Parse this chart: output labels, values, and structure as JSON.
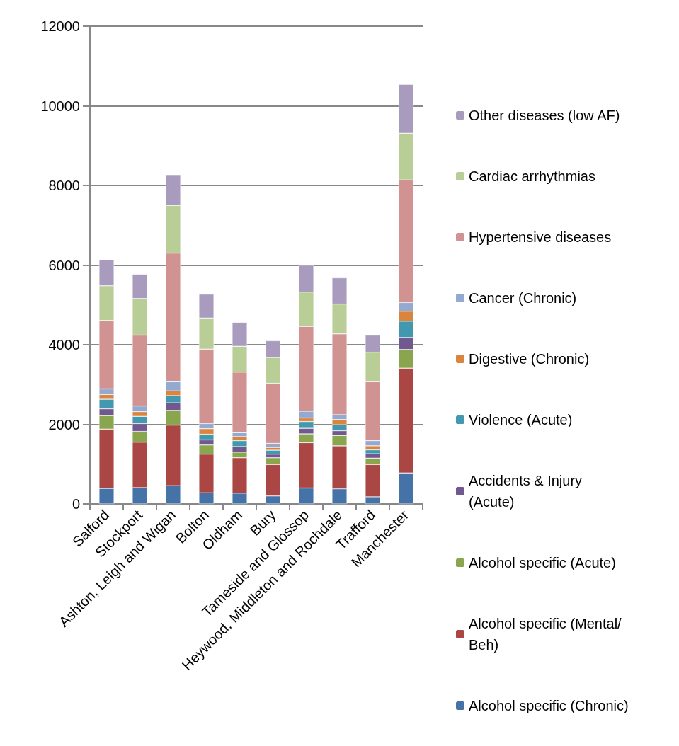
{
  "chart_data": {
    "type": "bar",
    "stacked": true,
    "grid": "y",
    "legend": "right",
    "categories": [
      "Salford",
      "Stockport",
      "Ashton, Leigh and Wigan",
      "Bolton",
      "Oldham",
      "Bury",
      "Tameside and Glossop",
      "Heywood, Middleton and Rochdale",
      "Trafford",
      "Manchester"
    ],
    "ylim": [
      0,
      12000
    ],
    "yticks": [
      0,
      2000,
      4000,
      6000,
      8000,
      10000,
      12000
    ],
    "series": [
      {
        "name": "Alcohol specific (Chronic)",
        "color": "#4572a7",
        "values": [
          390,
          410,
          460,
          280,
          270,
          200,
          400,
          380,
          180,
          780
        ]
      },
      {
        "name": "Alcohol specific (Mental/Beh)",
        "color": "#aa4643",
        "values": [
          1490,
          1140,
          1520,
          970,
          890,
          790,
          1140,
          1080,
          810,
          2630
        ]
      },
      {
        "name": "Alcohol specific (Acute)",
        "color": "#89a54e",
        "values": [
          340,
          270,
          370,
          230,
          140,
          170,
          220,
          260,
          160,
          470
        ]
      },
      {
        "name": "Accidents & Injury (Acute)",
        "color": "#71588f",
        "values": [
          170,
          200,
          190,
          130,
          140,
          90,
          140,
          120,
          110,
          300
        ]
      },
      {
        "name": "Violence (Acute)",
        "color": "#4198af",
        "values": [
          240,
          180,
          180,
          140,
          150,
          100,
          170,
          150,
          100,
          410
        ]
      },
      {
        "name": "Digestive (Chronic)",
        "color": "#db843d",
        "values": [
          120,
          120,
          120,
          140,
          100,
          70,
          90,
          130,
          100,
          250
        ]
      },
      {
        "name": "Cancer (Chronic)",
        "color": "#93a9cf",
        "values": [
          140,
          140,
          230,
          130,
          100,
          100,
          170,
          120,
          130,
          220
        ]
      },
      {
        "name": "Hypertensive diseases",
        "color": "#d19392",
        "values": [
          1720,
          1780,
          3230,
          1870,
          1520,
          1510,
          2130,
          2030,
          1480,
          3080
        ]
      },
      {
        "name": "Cardiac arrhythmias",
        "color": "#b9cd96",
        "values": [
          870,
          920,
          1200,
          780,
          650,
          650,
          860,
          750,
          740,
          1170
        ]
      },
      {
        "name": "Other diseases (low AF)",
        "color": "#a99bbd",
        "values": [
          650,
          610,
          770,
          600,
          600,
          420,
          680,
          660,
          430,
          1230
        ]
      }
    ]
  }
}
